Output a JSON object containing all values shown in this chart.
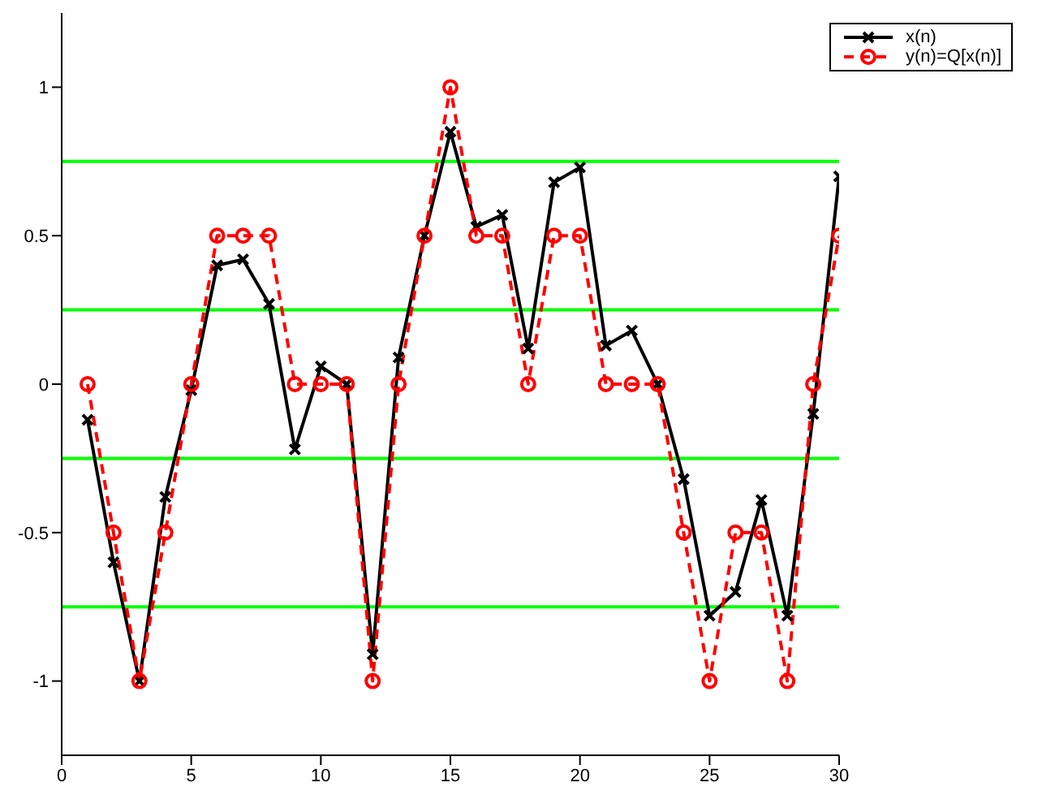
{
  "chart_data": {
    "type": "line",
    "x": [
      1,
      2,
      3,
      4,
      5,
      6,
      7,
      8,
      9,
      10,
      11,
      12,
      13,
      14,
      15,
      16,
      17,
      18,
      19,
      20,
      21,
      22,
      23,
      24,
      25,
      26,
      27,
      28,
      29,
      30
    ],
    "series": [
      {
        "name": "x(n)",
        "color": "#000000",
        "marker": "cross",
        "line_style": "solid",
        "values": [
          -0.12,
          -0.6,
          -1.0,
          -0.38,
          -0.02,
          0.4,
          0.42,
          0.27,
          -0.22,
          0.06,
          0.0,
          -0.91,
          0.09,
          0.5,
          0.85,
          0.53,
          0.57,
          0.12,
          0.68,
          0.73,
          0.13,
          0.18,
          0.0,
          -0.32,
          -0.78,
          -0.7,
          -0.39,
          -0.78,
          -0.1,
          0.7
        ]
      },
      {
        "name": "y(n)=Q[x(n)]",
        "color": "#ff0000",
        "marker": "circle",
        "line_style": "dashed",
        "values": [
          0,
          -0.5,
          -1,
          -0.5,
          0,
          0.5,
          0.5,
          0.5,
          0,
          0,
          0,
          -1,
          0,
          0.5,
          1,
          0.5,
          0.5,
          0,
          0.5,
          0.5,
          0,
          0,
          0,
          -0.5,
          -1,
          -0.5,
          -0.5,
          -1,
          0,
          0.5
        ]
      }
    ],
    "xlim": [
      0,
      30
    ],
    "xticks": [
      0,
      5,
      10,
      15,
      20,
      25,
      30
    ],
    "ylim": [
      -1.25,
      1.25
    ],
    "yticks": [
      -1,
      -0.5,
      0,
      0.5,
      1
    ],
    "ref_lines": [
      {
        "axis": "y",
        "value": 0.75,
        "color": "#00ff00"
      },
      {
        "axis": "y",
        "value": 0.25,
        "color": "#00ff00"
      },
      {
        "axis": "y",
        "value": -0.25,
        "color": "#00ff00"
      },
      {
        "axis": "y",
        "value": -0.75,
        "color": "#00ff00"
      }
    ],
    "grid": false,
    "legend": "top right"
  }
}
